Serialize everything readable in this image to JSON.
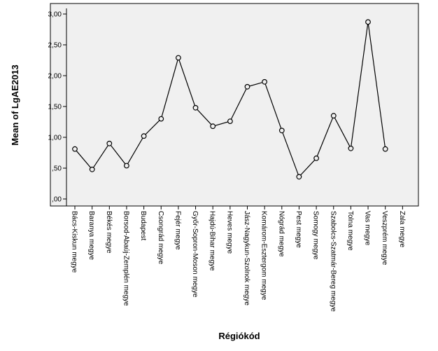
{
  "chart_data": {
    "type": "line",
    "title": "",
    "xlabel": "Régiókód",
    "ylabel": "Mean of LgAE2013",
    "ylim": [
      0,
      3.0
    ],
    "y_ticks": [
      0,
      0.5,
      1.0,
      1.5,
      2.0,
      2.5,
      3.0
    ],
    "y_tick_labels": [
      ",00",
      ",50",
      "1,00",
      "1,50",
      "2,00",
      "2,50",
      "3,00"
    ],
    "grid": false,
    "legend": "none",
    "categories": [
      "Bács-Kiskun megye",
      "Baranya megye",
      "Békés megye",
      "Borsod-Abaúj-Zemplén megye",
      "Budapest",
      "Csongrád megye",
      "Fejér megye",
      "Győr-Sopron-Moson megye",
      "Hajdú-Bihar megye",
      "Heves megye",
      "Jász-Nagykun-Szolnok megye",
      "Komárom-Esztergom megye",
      "Nógrád megye",
      "Pest megye",
      "Somogy megye",
      "Szabolcs-Szatmár-Bereg megye",
      "Tolna megye",
      "Vas megye",
      "Veszprém megye",
      "Zala megye"
    ],
    "values": [
      0.81,
      0.48,
      0.9,
      0.54,
      1.02,
      1.3,
      2.29,
      1.48,
      1.18,
      1.26,
      1.82,
      1.9,
      1.11,
      0.36,
      0.66,
      1.35,
      0.82,
      2.87,
      0.81,
      null
    ],
    "colors": {
      "plot_background": "#f0f0f0",
      "line": "#000000",
      "marker_stroke": "#000000",
      "marker_fill": "#f0f0f0"
    }
  }
}
